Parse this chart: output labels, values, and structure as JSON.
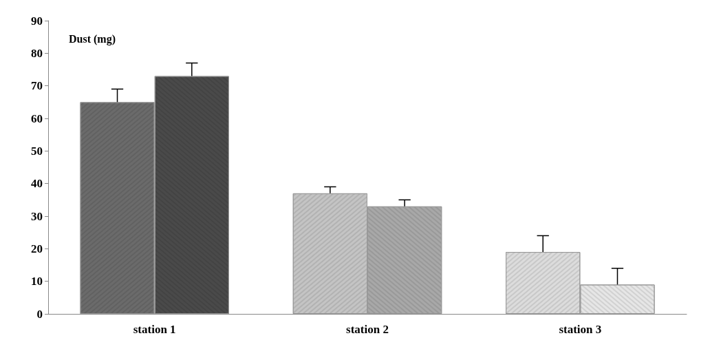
{
  "chart_data": {
    "type": "bar",
    "ylabel": "Dust (mg)",
    "categories": [
      "station 1",
      "station 2",
      "station 3"
    ],
    "series": [
      {
        "colors": [
          "#6b6b6b",
          "#c4c4c4",
          "#dcdcdc"
        ],
        "values": [
          65,
          37,
          19
        ],
        "errors": [
          [
            65,
            69
          ],
          [
            37,
            39
          ],
          [
            19,
            24
          ]
        ]
      },
      {
        "colors": [
          "#4a4a4a",
          "#a8a8a8",
          "#e6e6e6"
        ],
        "values": [
          73,
          33,
          9
        ],
        "errors": [
          [
            73,
            77
          ],
          [
            33,
            35
          ],
          [
            9,
            14
          ]
        ]
      }
    ],
    "ylim": [
      0,
      90
    ],
    "yticks": [
      0,
      10,
      20,
      30,
      40,
      50,
      60,
      70,
      80,
      90
    ],
    "grid": false
  }
}
